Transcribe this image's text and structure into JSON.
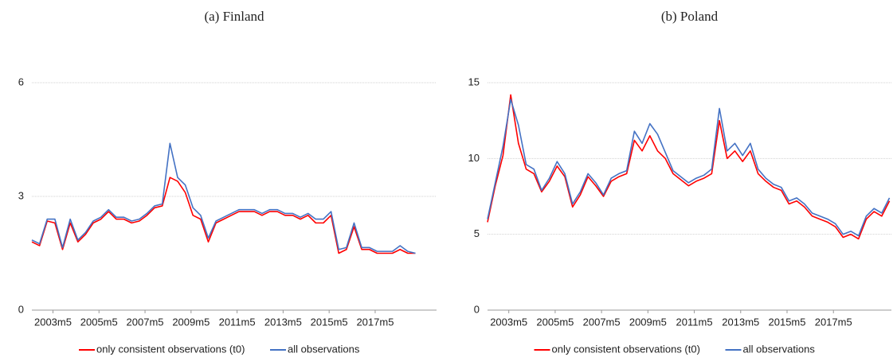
{
  "chart_data": [
    {
      "type": "line",
      "title": "(a) Finland",
      "x": [
        -11,
        -7,
        -3,
        1,
        5,
        9,
        13,
        17,
        21,
        25,
        29,
        33,
        37,
        41,
        45,
        49,
        53,
        57,
        61,
        65,
        69,
        73,
        77,
        81,
        85,
        89,
        93,
        97,
        101,
        105,
        109,
        113,
        117,
        121,
        125,
        129,
        133,
        137,
        141,
        145,
        149,
        153,
        157,
        161,
        165,
        169,
        173,
        177,
        181,
        185,
        189
      ],
      "series": [
        {
          "name": "only consistent observations (t0)",
          "color": "#ff0000",
          "values": [
            1.8,
            1.7,
            2.35,
            2.3,
            1.6,
            2.3,
            1.8,
            2.0,
            2.3,
            2.4,
            2.6,
            2.4,
            2.4,
            2.3,
            2.35,
            2.5,
            2.7,
            2.75,
            3.5,
            3.4,
            3.1,
            2.5,
            2.4,
            1.8,
            2.3,
            2.4,
            2.5,
            2.6,
            2.6,
            2.6,
            2.5,
            2.6,
            2.6,
            2.5,
            2.5,
            2.4,
            2.5,
            2.3,
            2.3,
            2.5,
            1.5,
            1.6,
            2.2,
            1.6,
            1.6,
            1.5,
            1.5,
            1.5,
            1.6,
            1.5,
            1.5
          ]
        },
        {
          "name": "all observations",
          "color": "#4472c4",
          "values": [
            1.85,
            1.75,
            2.4,
            2.4,
            1.65,
            2.4,
            1.85,
            2.05,
            2.35,
            2.45,
            2.65,
            2.45,
            2.45,
            2.35,
            2.4,
            2.55,
            2.75,
            2.8,
            4.4,
            3.5,
            3.3,
            2.7,
            2.5,
            1.9,
            2.35,
            2.45,
            2.55,
            2.65,
            2.65,
            2.65,
            2.55,
            2.65,
            2.65,
            2.55,
            2.55,
            2.45,
            2.55,
            2.4,
            2.4,
            2.6,
            1.6,
            1.65,
            2.3,
            1.65,
            1.65,
            1.55,
            1.55,
            1.55,
            1.7,
            1.55,
            1.5
          ]
        }
      ],
      "xlim": [
        -11,
        200
      ],
      "ylim": [
        0,
        6
      ],
      "yticks": [
        0,
        3,
        6
      ],
      "xticks": [
        {
          "value": 0,
          "label": "2003m5"
        },
        {
          "value": 24,
          "label": "2005m5"
        },
        {
          "value": 48,
          "label": "2007m5"
        },
        {
          "value": 72,
          "label": "2009m5"
        },
        {
          "value": 96,
          "label": "2011m5"
        },
        {
          "value": 120,
          "label": "2013m5"
        },
        {
          "value": 144,
          "label": "2015m5"
        },
        {
          "value": 168,
          "label": "2017m5"
        }
      ],
      "grid": true,
      "legend": "bottom"
    },
    {
      "type": "line",
      "title": "(b) Poland",
      "x": [
        -11,
        -7,
        -3,
        1,
        5,
        9,
        13,
        17,
        21,
        25,
        29,
        33,
        37,
        41,
        45,
        49,
        53,
        57,
        61,
        65,
        69,
        73,
        77,
        81,
        85,
        89,
        93,
        97,
        101,
        105,
        109,
        113,
        117,
        121,
        125,
        129,
        133,
        137,
        141,
        145,
        149,
        153,
        157,
        161,
        165,
        169,
        173,
        177,
        181,
        185,
        189,
        193,
        197
      ],
      "series": [
        {
          "name": "only consistent observations (t0)",
          "color": "#ff0000",
          "values": [
            5.8,
            8.2,
            10.2,
            14.2,
            11.0,
            9.3,
            9.0,
            7.8,
            8.5,
            9.5,
            8.8,
            6.8,
            7.6,
            8.8,
            8.2,
            7.5,
            8.5,
            8.8,
            9.0,
            11.2,
            10.5,
            11.5,
            10.5,
            10.0,
            9.0,
            8.6,
            8.2,
            8.5,
            8.7,
            9.0,
            12.5,
            10.0,
            10.5,
            9.8,
            10.5,
            9.0,
            8.5,
            8.1,
            7.9,
            7.0,
            7.2,
            6.8,
            6.2,
            6.0,
            5.8,
            5.5,
            4.8,
            5.0,
            4.7,
            6.0,
            6.5,
            6.2,
            7.2
          ]
        },
        {
          "name": "all observations",
          "color": "#4472c4",
          "values": [
            6.0,
            8.4,
            10.8,
            13.9,
            12.2,
            9.6,
            9.3,
            7.9,
            8.7,
            9.8,
            9.0,
            7.0,
            7.8,
            9.0,
            8.4,
            7.6,
            8.7,
            9.0,
            9.2,
            11.8,
            11.0,
            12.3,
            11.6,
            10.4,
            9.2,
            8.8,
            8.4,
            8.7,
            8.9,
            9.3,
            13.3,
            10.5,
            11.0,
            10.2,
            11.0,
            9.3,
            8.7,
            8.3,
            8.1,
            7.2,
            7.4,
            7.0,
            6.4,
            6.2,
            6.0,
            5.7,
            5.0,
            5.2,
            4.9,
            6.2,
            6.7,
            6.4,
            7.4
          ]
        }
      ],
      "xlim": [
        -11,
        198
      ],
      "ylim": [
        0,
        15
      ],
      "yticks": [
        0,
        5,
        10,
        15
      ],
      "xticks": [
        {
          "value": 0,
          "label": "2003m5"
        },
        {
          "value": 24,
          "label": "2005m5"
        },
        {
          "value": 48,
          "label": "2007m5"
        },
        {
          "value": 72,
          "label": "2009m5"
        },
        {
          "value": 96,
          "label": "2011m5"
        },
        {
          "value": 120,
          "label": "2013m5"
        },
        {
          "value": 144,
          "label": "2015m5"
        },
        {
          "value": 168,
          "label": "2017m5"
        }
      ],
      "grid": true,
      "legend": "bottom"
    }
  ]
}
